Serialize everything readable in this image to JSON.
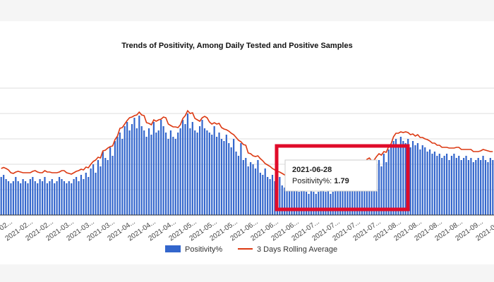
{
  "chart_data": {
    "type": "bar",
    "title": "Trends of Positivity, Among Daily Tested and Positive Samples",
    "x_tick_labels": [
      "2021-02...",
      "2021-02...",
      "2021-02...",
      "2021-03...",
      "2021-03...",
      "2021-03...",
      "2021-04...",
      "2021-04...",
      "2021-04...",
      "2021-05...",
      "2021-05...",
      "2021-05...",
      "2021-06...",
      "2021-06...",
      "2021-06...",
      "2021-07...",
      "2021-07...",
      "2021-07...",
      "2021-07...",
      "2021-08...",
      "2021-08...",
      "2021-08...",
      "2021-08...",
      "2021-09...",
      "2021-09..."
    ],
    "grid": true,
    "legend_position": "bottom",
    "series": [
      {
        "name": "Positivity%",
        "kind": "bar",
        "color": "#3366cc",
        "values": [
          1.8,
          1.9,
          1.7,
          1.6,
          1.5,
          1.6,
          1.8,
          1.6,
          1.5,
          1.7,
          1.6,
          1.5,
          1.7,
          1.8,
          1.6,
          1.5,
          1.7,
          1.6,
          1.8,
          1.5,
          1.6,
          1.7,
          1.5,
          1.6,
          1.8,
          1.7,
          1.6,
          1.5,
          1.6,
          1.5,
          1.7,
          1.8,
          1.6,
          1.9,
          1.7,
          2.0,
          1.8,
          2.2,
          2.4,
          2.0,
          2.6,
          2.3,
          3.0,
          2.7,
          2.6,
          3.2,
          2.8,
          3.5,
          3.7,
          3.9,
          3.6,
          4.2,
          4.4,
          4.0,
          4.3,
          4.6,
          4.1,
          4.7,
          4.2,
          4.0,
          3.7,
          4.1,
          3.8,
          4.4,
          3.9,
          4.0,
          4.5,
          4.2,
          3.9,
          3.6,
          4.0,
          3.7,
          3.6,
          3.9,
          4.1,
          4.5,
          4.3,
          4.8,
          4.1,
          4.4,
          4.0,
          3.9,
          4.2,
          4.5,
          4.1,
          4.0,
          3.9,
          3.8,
          4.2,
          3.7,
          3.9,
          3.6,
          3.5,
          3.8,
          3.4,
          3.2,
          3.6,
          3.0,
          2.8,
          3.4,
          2.6,
          2.7,
          2.3,
          2.5,
          2.4,
          2.2,
          2.6,
          2.0,
          1.9,
          2.2,
          1.8,
          1.7,
          1.9,
          1.6,
          1.5,
          1.8,
          1.4,
          1.3,
          1.6,
          1.3,
          1.4,
          1.2,
          1.3,
          1.1,
          1.2,
          1.3,
          1.1,
          1.0,
          1.2,
          1.1,
          1.0,
          1.1,
          1.2,
          1.3,
          1.1,
          1.2,
          1.0,
          1.1,
          1.2,
          1.3,
          1.4,
          1.3,
          1.5,
          1.4,
          1.6,
          1.5,
          1.7,
          1.8,
          1.6,
          1.7,
          2.6,
          2.4,
          1.9,
          2.2,
          2.5,
          2.4,
          2.6,
          2.3,
          2.9,
          2.5,
          3.1,
          3.3,
          3.5,
          3.6,
          3.3,
          3.7,
          3.5,
          3.4,
          3.6,
          3.2,
          3.5,
          3.3,
          3.4,
          3.1,
          3.3,
          3.2,
          3.0,
          3.1,
          2.9,
          3.0,
          2.8,
          2.9,
          2.7,
          2.8,
          2.9,
          2.6,
          2.8,
          2.9,
          2.7,
          2.8,
          2.6,
          2.7,
          2.8,
          2.6,
          2.7,
          2.5,
          2.6,
          2.7,
          2.6,
          2.8,
          2.6,
          2.5,
          2.7,
          2.6
        ]
      },
      {
        "name": "3 Days Rolling Average",
        "kind": "line",
        "color": "#dc3912"
      }
    ],
    "tooltip": {
      "date": "2021-06-28",
      "label": "Positivity%: ",
      "value": "1.79"
    }
  },
  "legend": {
    "bar_label": "Positivity%",
    "line_label": "3 Days Rolling Average"
  }
}
